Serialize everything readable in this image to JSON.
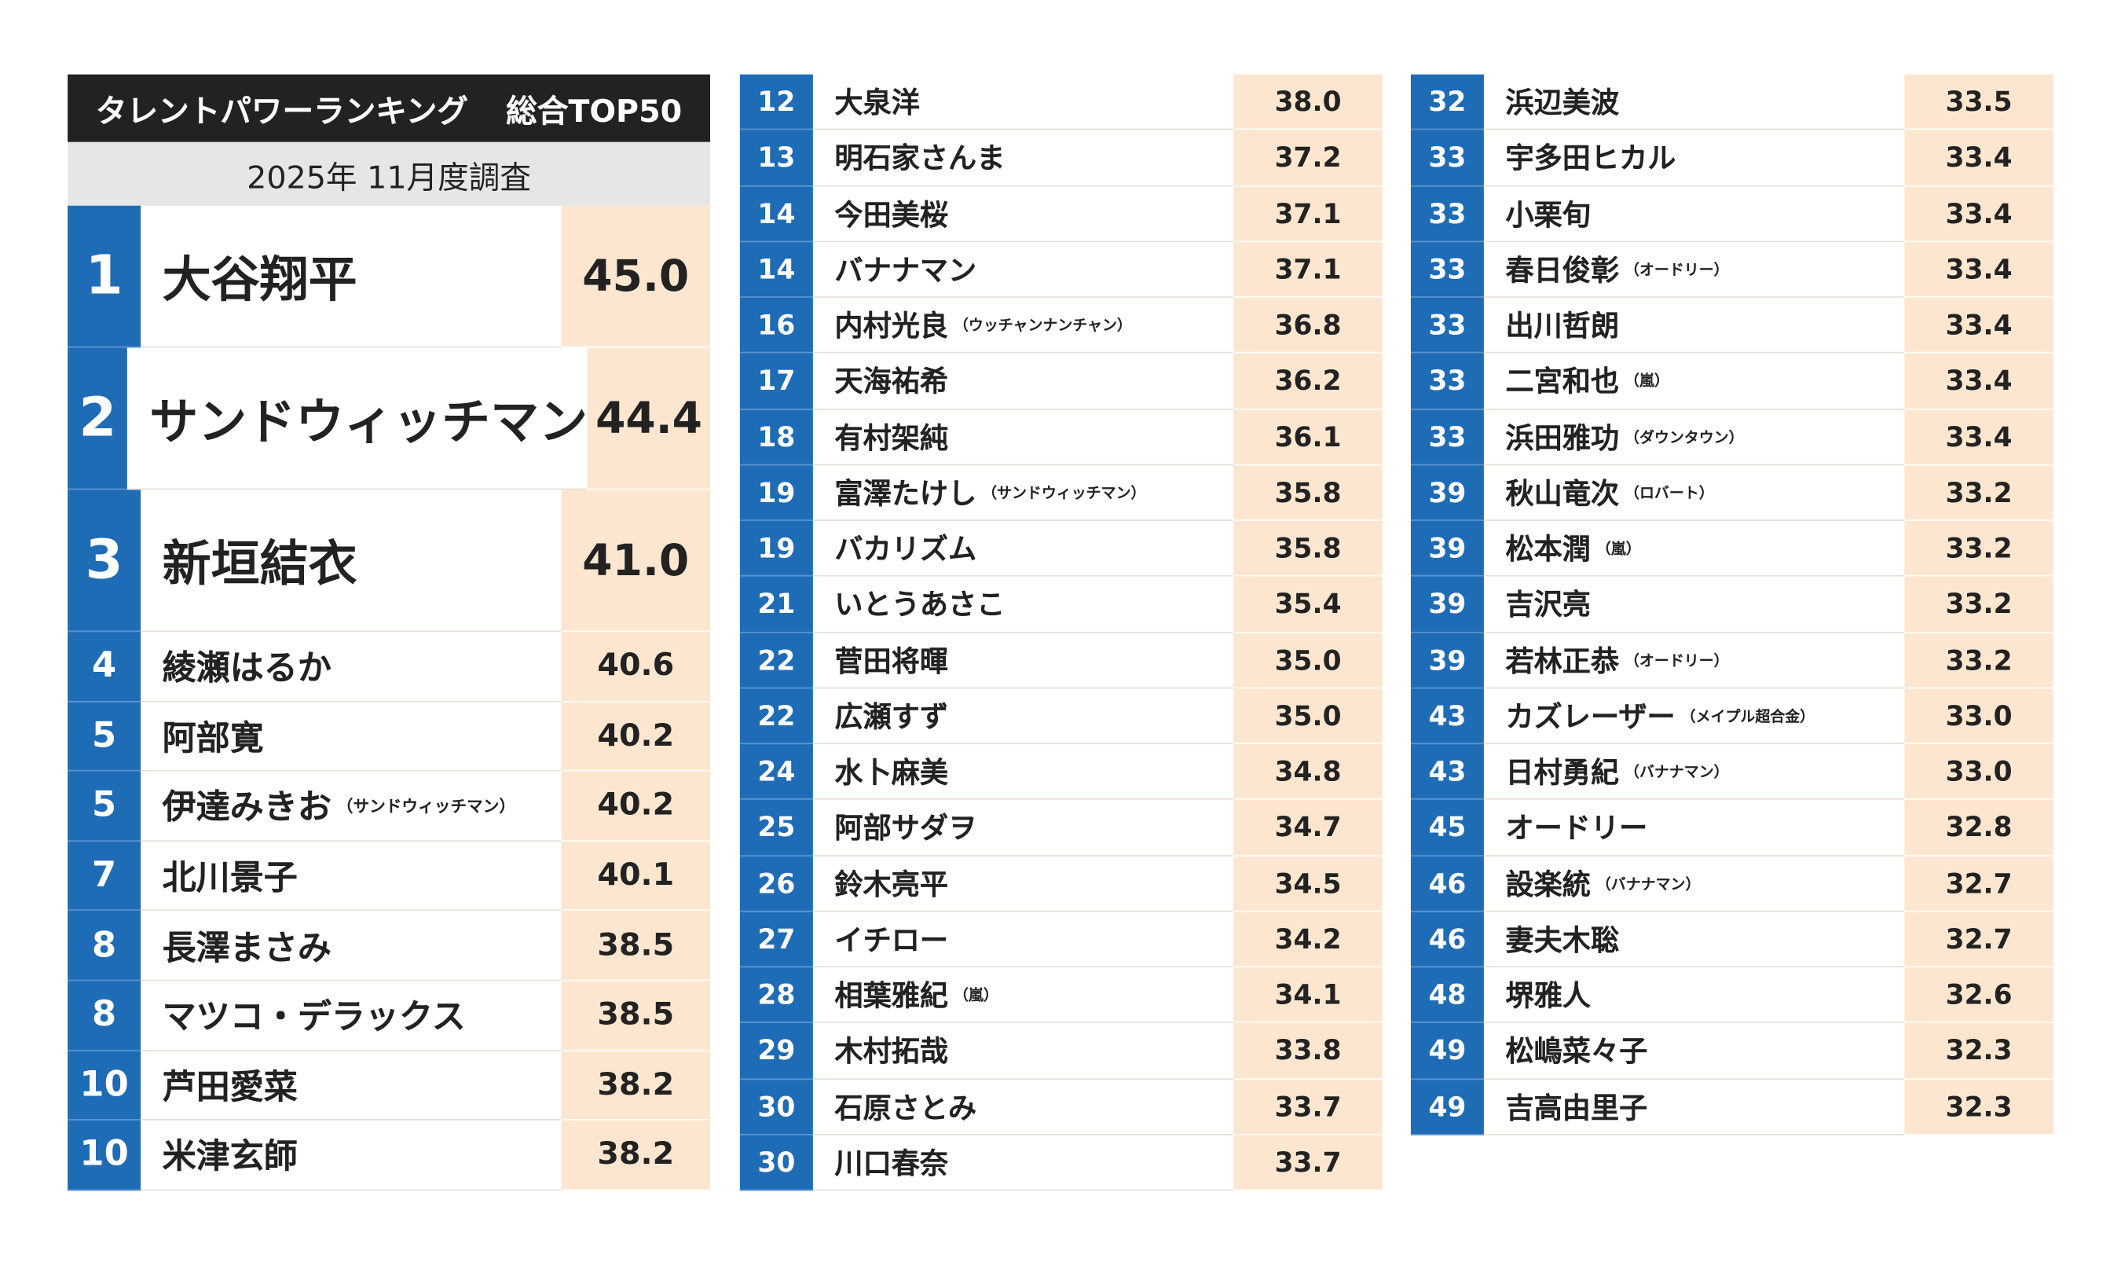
{
  "header": {
    "title": "タレントパワーランキング",
    "subtitle": "総合TOP50",
    "survey": "2025年 11月度調査"
  },
  "columns": [
    [
      {
        "rank": "1",
        "name": "大谷翔平",
        "score": "45.0"
      },
      {
        "rank": "2",
        "name": "サンドウィッチマン",
        "score": "44.4"
      },
      {
        "rank": "3",
        "name": "新垣結衣",
        "score": "41.0"
      },
      {
        "rank": "4",
        "name": "綾瀬はるか",
        "score": "40.6"
      },
      {
        "rank": "5",
        "name": "阿部寛",
        "score": "40.2"
      },
      {
        "rank": "5",
        "name": "伊達みきお",
        "note": "（サンドウィッチマン）",
        "score": "40.2"
      },
      {
        "rank": "7",
        "name": "北川景子",
        "score": "40.1"
      },
      {
        "rank": "8",
        "name": "長澤まさみ",
        "score": "38.5"
      },
      {
        "rank": "8",
        "name": "マツコ・デラックス",
        "score": "38.5"
      },
      {
        "rank": "10",
        "name": "芦田愛菜",
        "score": "38.2"
      },
      {
        "rank": "10",
        "name": "米津玄師",
        "score": "38.2"
      }
    ],
    [
      {
        "rank": "12",
        "name": "大泉洋",
        "score": "38.0"
      },
      {
        "rank": "13",
        "name": "明石家さんま",
        "score": "37.2"
      },
      {
        "rank": "14",
        "name": "今田美桜",
        "score": "37.1"
      },
      {
        "rank": "14",
        "name": "バナナマン",
        "score": "37.1"
      },
      {
        "rank": "16",
        "name": "内村光良",
        "note": "（ウッチャンナンチャン）",
        "score": "36.8"
      },
      {
        "rank": "17",
        "name": "天海祐希",
        "score": "36.2"
      },
      {
        "rank": "18",
        "name": "有村架純",
        "score": "36.1"
      },
      {
        "rank": "19",
        "name": "富澤たけし",
        "note": "（サンドウィッチマン）",
        "score": "35.8"
      },
      {
        "rank": "19",
        "name": "バカリズム",
        "score": "35.8"
      },
      {
        "rank": "21",
        "name": "いとうあさこ",
        "score": "35.4"
      },
      {
        "rank": "22",
        "name": "菅田将暉",
        "score": "35.0"
      },
      {
        "rank": "22",
        "name": "広瀬すず",
        "score": "35.0"
      },
      {
        "rank": "24",
        "name": "水卜麻美",
        "score": "34.8"
      },
      {
        "rank": "25",
        "name": "阿部サダヲ",
        "score": "34.7"
      },
      {
        "rank": "26",
        "name": "鈴木亮平",
        "score": "34.5"
      },
      {
        "rank": "27",
        "name": "イチロー",
        "score": "34.2"
      },
      {
        "rank": "28",
        "name": "相葉雅紀",
        "note": "（嵐）",
        "score": "34.1"
      },
      {
        "rank": "29",
        "name": "木村拓哉",
        "score": "33.8"
      },
      {
        "rank": "30",
        "name": "石原さとみ",
        "score": "33.7"
      },
      {
        "rank": "30",
        "name": "川口春奈",
        "score": "33.7"
      }
    ],
    [
      {
        "rank": "32",
        "name": "浜辺美波",
        "score": "33.5"
      },
      {
        "rank": "33",
        "name": "宇多田ヒカル",
        "score": "33.4"
      },
      {
        "rank": "33",
        "name": "小栗旬",
        "score": "33.4"
      },
      {
        "rank": "33",
        "name": "春日俊彰",
        "note": "（オードリー）",
        "score": "33.4"
      },
      {
        "rank": "33",
        "name": "出川哲朗",
        "score": "33.4"
      },
      {
        "rank": "33",
        "name": "二宮和也",
        "note": "（嵐）",
        "score": "33.4"
      },
      {
        "rank": "33",
        "name": "浜田雅功",
        "note": "（ダウンタウン）",
        "score": "33.4"
      },
      {
        "rank": "39",
        "name": "秋山竜次",
        "note": "（ロバート）",
        "score": "33.2"
      },
      {
        "rank": "39",
        "name": "松本潤",
        "note": "（嵐）",
        "score": "33.2"
      },
      {
        "rank": "39",
        "name": "吉沢亮",
        "score": "33.2"
      },
      {
        "rank": "39",
        "name": "若林正恭",
        "note": "（オードリー）",
        "score": "33.2"
      },
      {
        "rank": "43",
        "name": "カズレーザー",
        "note": "（メイプル超合金）",
        "score": "33.0"
      },
      {
        "rank": "43",
        "name": "日村勇紀",
        "note": "（バナナマン）",
        "score": "33.0"
      },
      {
        "rank": "45",
        "name": "オードリー",
        "score": "32.8"
      },
      {
        "rank": "46",
        "name": "設楽統",
        "note": "（バナナマン）",
        "score": "32.7"
      },
      {
        "rank": "46",
        "name": "妻夫木聡",
        "score": "32.7"
      },
      {
        "rank": "48",
        "name": "堺雅人",
        "score": "32.6"
      },
      {
        "rank": "49",
        "name": "松嶋菜々子",
        "score": "32.3"
      },
      {
        "rank": "49",
        "name": "吉高由里子",
        "score": "32.3"
      }
    ]
  ]
}
